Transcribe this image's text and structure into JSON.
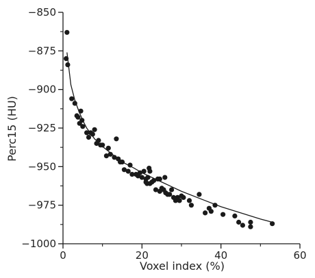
{
  "chart_data": {
    "type": "scatter",
    "xlabel": "Voxel index (%)",
    "ylabel": "Perc15 (HU)",
    "xlim": [
      0,
      60
    ],
    "ylim": [
      -1000,
      -850
    ],
    "xticks": [
      0,
      20,
      40,
      60
    ],
    "yticks": [
      -850,
      -875,
      -900,
      -925,
      -950,
      -975,
      -1000
    ],
    "xtick_labels": [
      "0",
      "20",
      "40",
      "60"
    ],
    "ytick_labels": [
      "−850",
      "−875",
      "−900",
      "−925",
      "−950",
      "−975",
      "−1000"
    ],
    "grid": false,
    "series": [
      {
        "points": [
          [
            1.0,
            -863
          ],
          [
            0.8,
            -880
          ],
          [
            1.2,
            -884
          ],
          [
            2.2,
            -906
          ],
          [
            3.0,
            -909
          ],
          [
            3.5,
            -917
          ],
          [
            3.8,
            -918
          ],
          [
            4.2,
            -922
          ],
          [
            4.5,
            -914
          ],
          [
            4.8,
            -920
          ],
          [
            5.0,
            -924
          ],
          [
            6.0,
            -928
          ],
          [
            6.5,
            -931
          ],
          [
            7.0,
            -928
          ],
          [
            7.5,
            -929
          ],
          [
            8.0,
            -926
          ],
          [
            8.5,
            -935
          ],
          [
            9.0,
            -933
          ],
          [
            9.5,
            -936
          ],
          [
            10.0,
            -936
          ],
          [
            11.0,
            -943
          ],
          [
            11.5,
            -938
          ],
          [
            12.0,
            -942
          ],
          [
            13.0,
            -944
          ],
          [
            13.5,
            -932
          ],
          [
            14.0,
            -945
          ],
          [
            14.5,
            -947
          ],
          [
            15.0,
            -947
          ],
          [
            15.5,
            -952
          ],
          [
            16.5,
            -953
          ],
          [
            17.0,
            -949
          ],
          [
            17.5,
            -955
          ],
          [
            18.5,
            -955
          ],
          [
            19.0,
            -956
          ],
          [
            19.5,
            -954
          ],
          [
            20.0,
            -957
          ],
          [
            20.5,
            -953
          ],
          [
            21.0,
            -958
          ],
          [
            21.0,
            -960
          ],
          [
            21.3,
            -961
          ],
          [
            21.5,
            -957
          ],
          [
            21.8,
            -951
          ],
          [
            22.0,
            -953
          ],
          [
            22.0,
            -961
          ],
          [
            22.5,
            -960
          ],
          [
            23.0,
            -959
          ],
          [
            23.5,
            -965
          ],
          [
            24.0,
            -958
          ],
          [
            24.5,
            -958
          ],
          [
            24.5,
            -966
          ],
          [
            25.0,
            -964
          ],
          [
            25.5,
            -965
          ],
          [
            25.8,
            -957
          ],
          [
            26.0,
            -967
          ],
          [
            26.5,
            -968
          ],
          [
            27.0,
            -968
          ],
          [
            27.5,
            -965
          ],
          [
            28.0,
            -970
          ],
          [
            28.5,
            -972
          ],
          [
            29.0,
            -970
          ],
          [
            29.5,
            -972
          ],
          [
            30.0,
            -969
          ],
          [
            30.5,
            -970
          ],
          [
            32.0,
            -972
          ],
          [
            32.5,
            -975
          ],
          [
            34.5,
            -968
          ],
          [
            36.0,
            -980
          ],
          [
            37.0,
            -977
          ],
          [
            37.5,
            -979
          ],
          [
            38.5,
            -975
          ],
          [
            40.5,
            -981
          ],
          [
            43.5,
            -982
          ],
          [
            44.5,
            -986
          ],
          [
            45.5,
            -988
          ],
          [
            47.5,
            -986
          ],
          [
            47.5,
            -989
          ],
          [
            53.0,
            -987
          ]
        ]
      }
    ],
    "fit_curve": {
      "x": [
        1,
        2,
        3,
        4,
        5,
        6,
        8,
        10,
        12,
        15,
        18,
        20,
        25,
        30,
        35,
        40,
        45,
        50,
        53
      ],
      "y": [
        -876,
        -897,
        -907,
        -914,
        -920,
        -925,
        -932,
        -937,
        -941,
        -947,
        -951,
        -954,
        -960,
        -966,
        -971,
        -976,
        -980,
        -984,
        -986
      ]
    },
    "colors": {
      "points": "#1a1a1a",
      "line": "#1a1a1a",
      "axes": "#1a1a1a"
    }
  }
}
